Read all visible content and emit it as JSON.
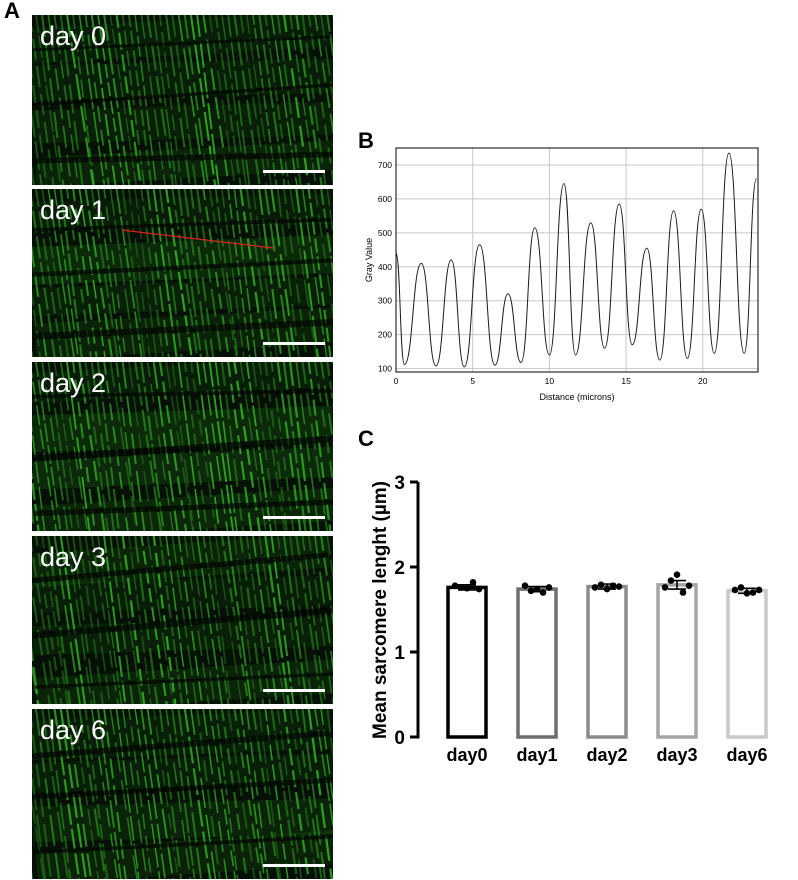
{
  "panels": {
    "a": "A",
    "b": "B",
    "c": "C"
  },
  "micrographs": [
    {
      "label": "day 0",
      "trace_line": false
    },
    {
      "label": "day 1",
      "trace_line": true
    },
    {
      "label": "day 2",
      "trace_line": false
    },
    {
      "label": "day 3",
      "trace_line": false
    },
    {
      "label": "day 6",
      "trace_line": false
    }
  ],
  "colors": {
    "fluorescence": "#3ddc2c",
    "trace_line": "#e02020",
    "scale_bar": "#ffffff",
    "bar_day0": "#000000",
    "bar_day1": "#6e6e6e",
    "bar_day2": "#8c8c8c",
    "bar_day3": "#a5a5a5",
    "bar_day6": "#c8c8c8"
  },
  "chart_data": [
    {
      "panel": "B",
      "type": "line",
      "title": "",
      "xlabel": "Distance (microns)",
      "ylabel": "Gray Value",
      "xlim": [
        0,
        23.6
      ],
      "ylim": [
        90,
        750
      ],
      "grid": true,
      "x_ticks": [
        0,
        5,
        10,
        15,
        20
      ],
      "y_ticks": [
        100,
        200,
        300,
        400,
        500,
        600,
        700
      ],
      "peaks": [
        {
          "x": 1.65,
          "y": 410
        },
        {
          "x": 3.6,
          "y": 420
        },
        {
          "x": 5.45,
          "y": 465
        },
        {
          "x": 7.3,
          "y": 320
        },
        {
          "x": 9.05,
          "y": 515
        },
        {
          "x": 10.95,
          "y": 645
        },
        {
          "x": 12.7,
          "y": 530
        },
        {
          "x": 14.55,
          "y": 585
        },
        {
          "x": 16.35,
          "y": 455
        },
        {
          "x": 18.1,
          "y": 565
        },
        {
          "x": 19.9,
          "y": 570
        },
        {
          "x": 21.7,
          "y": 735
        },
        {
          "x": 23.5,
          "y": 660
        }
      ],
      "troughs": [
        {
          "x": 0.0,
          "y": 440
        },
        {
          "x": 0.55,
          "y": 112
        },
        {
          "x": 2.6,
          "y": 108
        },
        {
          "x": 4.45,
          "y": 105
        },
        {
          "x": 6.45,
          "y": 110
        },
        {
          "x": 8.15,
          "y": 118
        },
        {
          "x": 10.0,
          "y": 140
        },
        {
          "x": 11.7,
          "y": 140
        },
        {
          "x": 13.6,
          "y": 160
        },
        {
          "x": 15.4,
          "y": 170
        },
        {
          "x": 17.2,
          "y": 125
        },
        {
          "x": 19.0,
          "y": 130
        },
        {
          "x": 20.75,
          "y": 145
        },
        {
          "x": 22.7,
          "y": 145
        }
      ]
    },
    {
      "panel": "C",
      "type": "bar",
      "title": "",
      "xlabel": "",
      "ylabel": "Mean sarcomere lenght (µm)",
      "ylim": [
        0,
        3
      ],
      "y_ticks": [
        0,
        1,
        2,
        3
      ],
      "categories": [
        "day0",
        "day1",
        "day2",
        "day3",
        "day6"
      ],
      "values": [
        1.76,
        1.74,
        1.77,
        1.79,
        1.72
      ],
      "errors": [
        0.03,
        0.03,
        0.03,
        0.05,
        0.03
      ],
      "points": [
        [
          1.78,
          1.76,
          1.75,
          1.82,
          1.74
        ],
        [
          1.78,
          1.72,
          1.74,
          1.7,
          1.76
        ],
        [
          1.76,
          1.79,
          1.74,
          1.78,
          1.77
        ],
        [
          1.76,
          1.84,
          1.91,
          1.7,
          1.78
        ],
        [
          1.73,
          1.76,
          1.69,
          1.7,
          1.73
        ]
      ]
    }
  ]
}
